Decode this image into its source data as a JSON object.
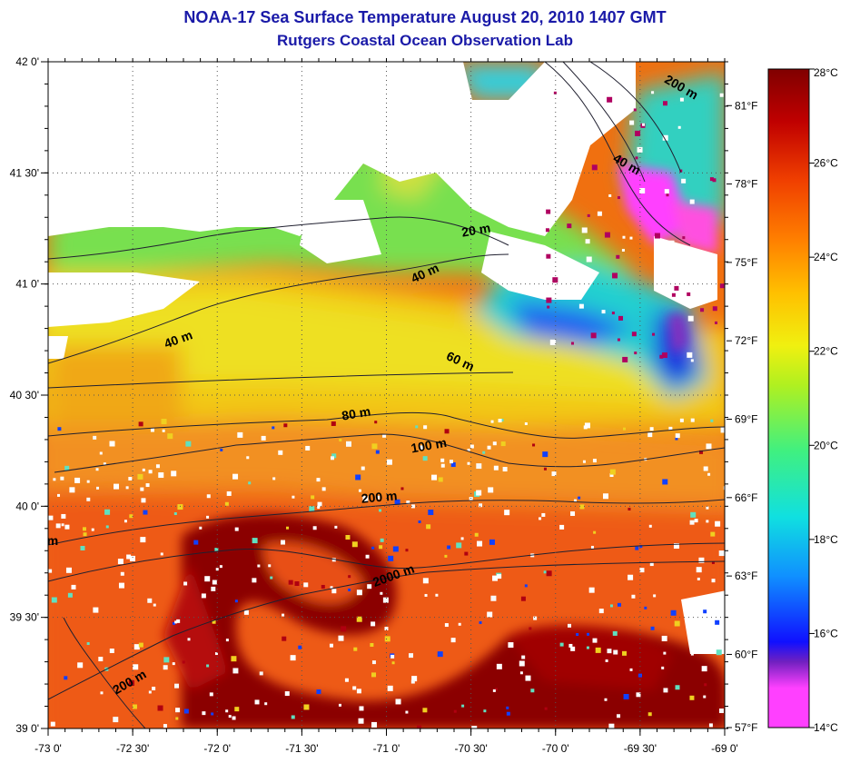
{
  "header": {
    "title": "NOAA-17 Sea Surface Temperature August 20, 2010 1407 GMT",
    "subtitle": "Rutgers Coastal Ocean Observation Lab"
  },
  "map": {
    "lon_ticks": [
      "-73 0'",
      "-72 30'",
      "-72 0'",
      "-71 30'",
      "-71 0'",
      "-70 30'",
      "-70 0'",
      "-69 30'",
      "-69 0'"
    ],
    "lat_ticks": [
      "42 0'",
      "41 30'",
      "41 0'",
      "40 30'",
      "40 0'",
      "39 30'",
      "39 0'"
    ],
    "lon_range": [
      -73,
      -69
    ],
    "lat_range": [
      39,
      42
    ],
    "grid": "dotted",
    "contour_labels": [
      "200 m",
      "40 m",
      "20 m",
      "40 m",
      "40 m",
      "60 m",
      "80 m",
      "100 m",
      "200 m",
      "2000 m",
      "200 m",
      "m"
    ]
  },
  "colorbar": {
    "celsius_labels": [
      "28°C",
      "26°C",
      "24°C",
      "22°C",
      "20°C",
      "18°C",
      "16°C",
      "14°C"
    ],
    "fahrenheit_labels": [
      "81°F",
      "78°F",
      "75°F",
      "72°F",
      "69°F",
      "66°F",
      "63°F",
      "60°F",
      "57°F"
    ],
    "range_c": [
      14,
      28
    ],
    "stops": [
      "#ff40ff",
      "#7020c0",
      "#1010ff",
      "#1090ff",
      "#10e0e0",
      "#40f080",
      "#b0f020",
      "#f0f010",
      "#ffc000",
      "#ff8000",
      "#f04000",
      "#c00000",
      "#800000"
    ]
  },
  "colors": {
    "title": "#1a1aa8",
    "land": "#ffffff",
    "warm_core": "#8b0000",
    "shelf_water": "#f0d020"
  }
}
